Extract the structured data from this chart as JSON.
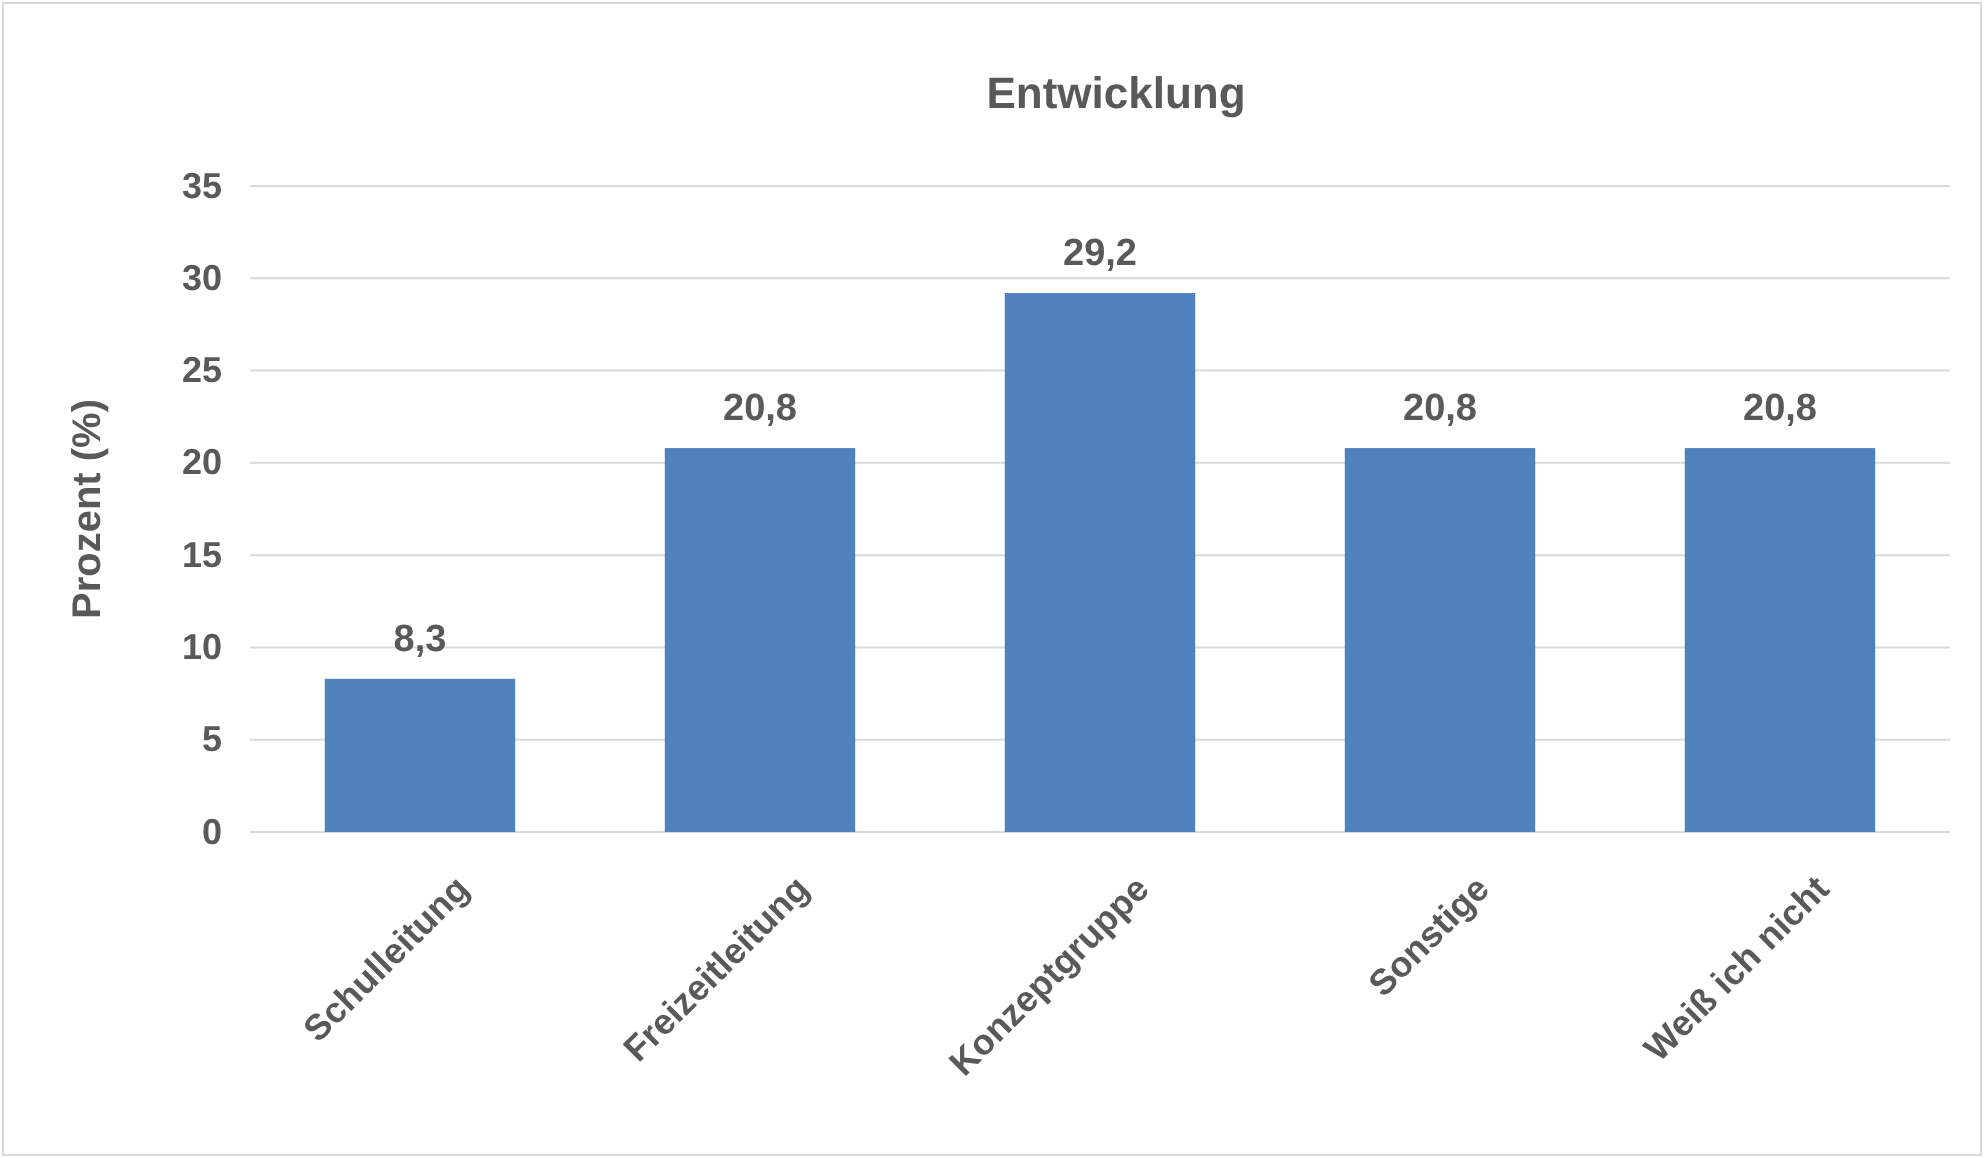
{
  "chart_data": {
    "type": "bar",
    "title": "Entwicklung",
    "ylabel": "Prozent (%)",
    "categories": [
      "Schulleitung",
      "Freizeitleitung",
      "Konzeptgruppe",
      "Sonstige",
      "Weiß ich nicht"
    ],
    "values": [
      8.3,
      20.8,
      29.2,
      20.8,
      20.8
    ],
    "value_labels": [
      "8,3",
      "20,8",
      "29,2",
      "20,8",
      "20,8"
    ],
    "color": "#4f81bd",
    "ylim": [
      0,
      35
    ],
    "yticks": [
      0,
      5,
      10,
      15,
      20,
      25,
      30,
      35
    ],
    "grid": "y"
  }
}
